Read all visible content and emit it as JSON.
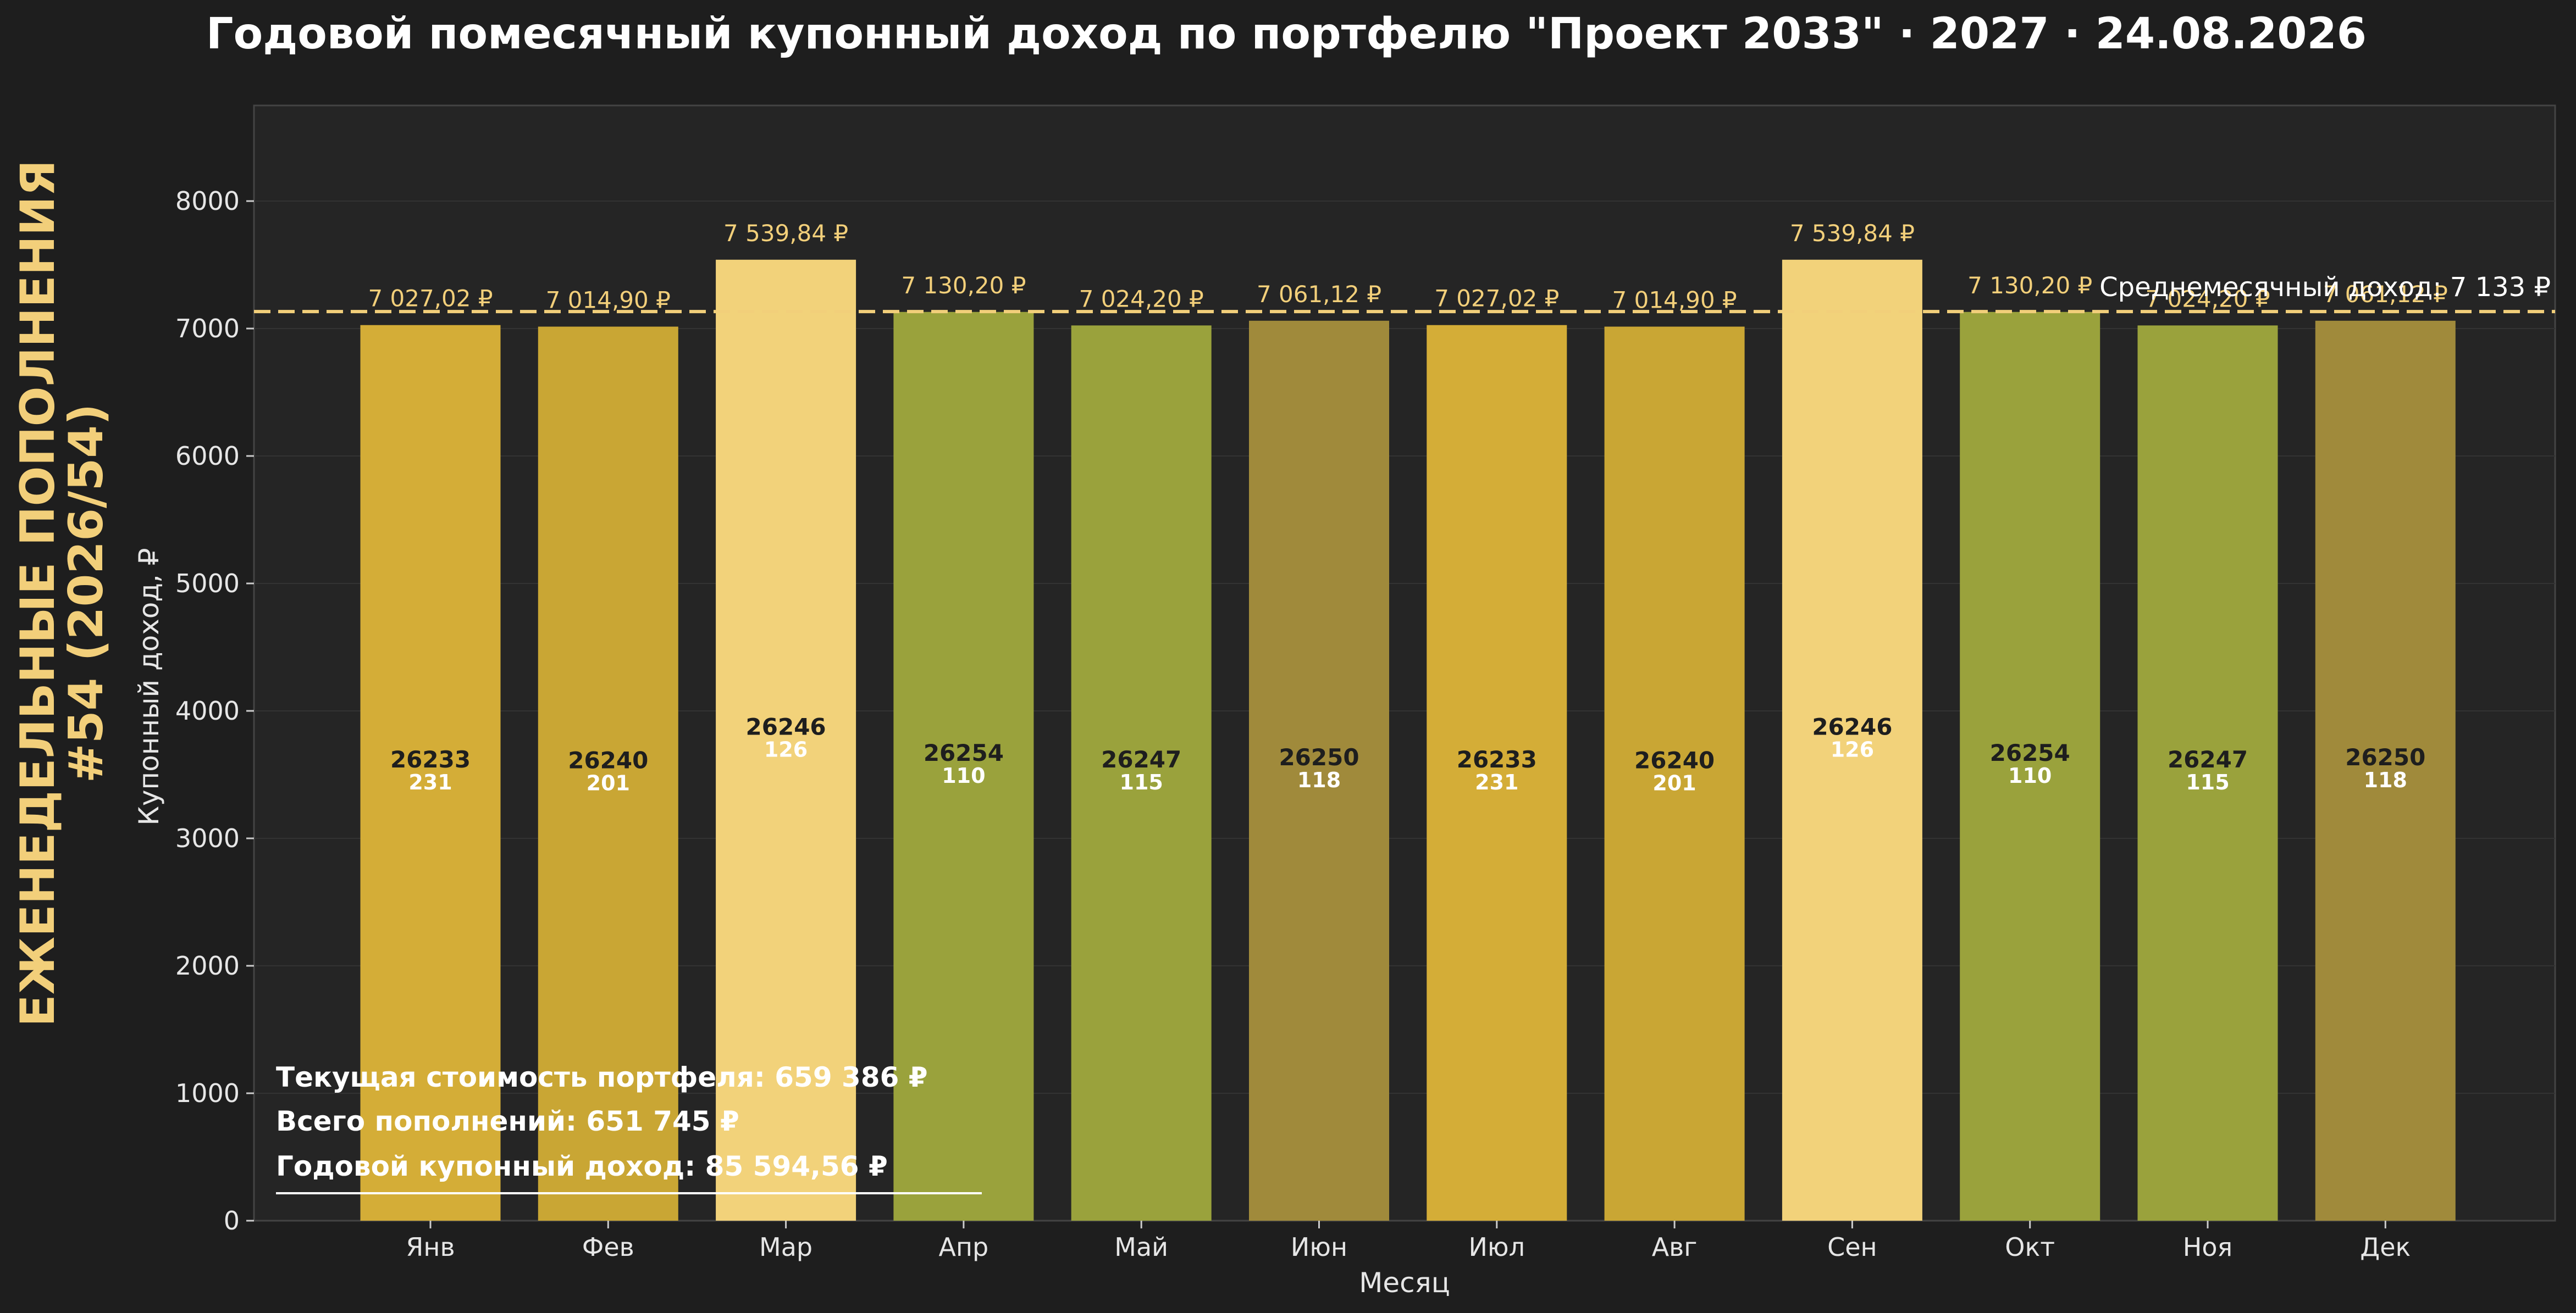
{
  "title": "Годовой помесячный купонный доход по портфелю \"Проект 2033\" · 2027 · 24.08.2026",
  "side_label": {
    "line1": "ЕЖЕНЕДЕЛЬНЫЕ ПОПОЛНЕНИЯ",
    "line2": "#54 (2026/54)"
  },
  "info": {
    "portfolio_value": "Текущая стоимость портфеля: 659 386 ₽",
    "total_deposits": "Всего пополнений: 651 745 ₽",
    "annual_income": "Годовой купонный доход: 85 594,56 ₽"
  },
  "colors": {
    "background": "#1e1e1e",
    "plot_background": "#252525",
    "accent": "#f2cf7a",
    "gold": "#d4ad37",
    "dark_gold": "#c9a634",
    "light_gold": "#f2d27a",
    "olive": "#9aa23c",
    "khaki": "#a08a3b"
  },
  "chart_data": {
    "type": "bar",
    "title": "Годовой помесячный купонный доход по портфелю \"Проект 2033\" · 2027 · 24.08.2026",
    "xlabel": "Месяц",
    "ylabel": "Купонный доход, ₽",
    "ylim": [
      0,
      8750
    ],
    "yticks": [
      0,
      1000,
      2000,
      3000,
      4000,
      5000,
      6000,
      7000,
      8000
    ],
    "grid": true,
    "categories": [
      "Янв",
      "Фев",
      "Мар",
      "Апр",
      "Май",
      "Июн",
      "Июл",
      "Авг",
      "Сен",
      "Окт",
      "Ноя",
      "Дек"
    ],
    "values": [
      7027.02,
      7014.9,
      7539.84,
      7130.2,
      7024.2,
      7061.12,
      7027.02,
      7014.9,
      7539.84,
      7130.2,
      7024.2,
      7061.12
    ],
    "value_labels": [
      "7 027,02 ₽",
      "7 014,90 ₽",
      "7 539,84 ₽",
      "7 130,20 ₽",
      "7 024,20 ₽",
      "7 061,12 ₽",
      "7 027,02 ₽",
      "7 014,90 ₽",
      "7 539,84 ₽",
      "7 130,20 ₽",
      "7 024,20 ₽",
      "7 061,12 ₽"
    ],
    "bond_codes": [
      "26233",
      "26240",
      "26246",
      "26254",
      "26247",
      "26250",
      "26233",
      "26240",
      "26246",
      "26254",
      "26247",
      "26250"
    ],
    "bond_counts": [
      "231",
      "201",
      "126",
      "110",
      "115",
      "118",
      "231",
      "201",
      "126",
      "110",
      "115",
      "118"
    ],
    "bar_colors": [
      "#d4ad37",
      "#c9a634",
      "#f2d27a",
      "#9aa23c",
      "#9aa23c",
      "#a08a3b",
      "#d4ad37",
      "#c9a634",
      "#f2d27a",
      "#9aa23c",
      "#9aa23c",
      "#a08a3b"
    ],
    "average": {
      "value": 7133,
      "label": "Среднемесячный доход: 7 133 ₽"
    }
  }
}
